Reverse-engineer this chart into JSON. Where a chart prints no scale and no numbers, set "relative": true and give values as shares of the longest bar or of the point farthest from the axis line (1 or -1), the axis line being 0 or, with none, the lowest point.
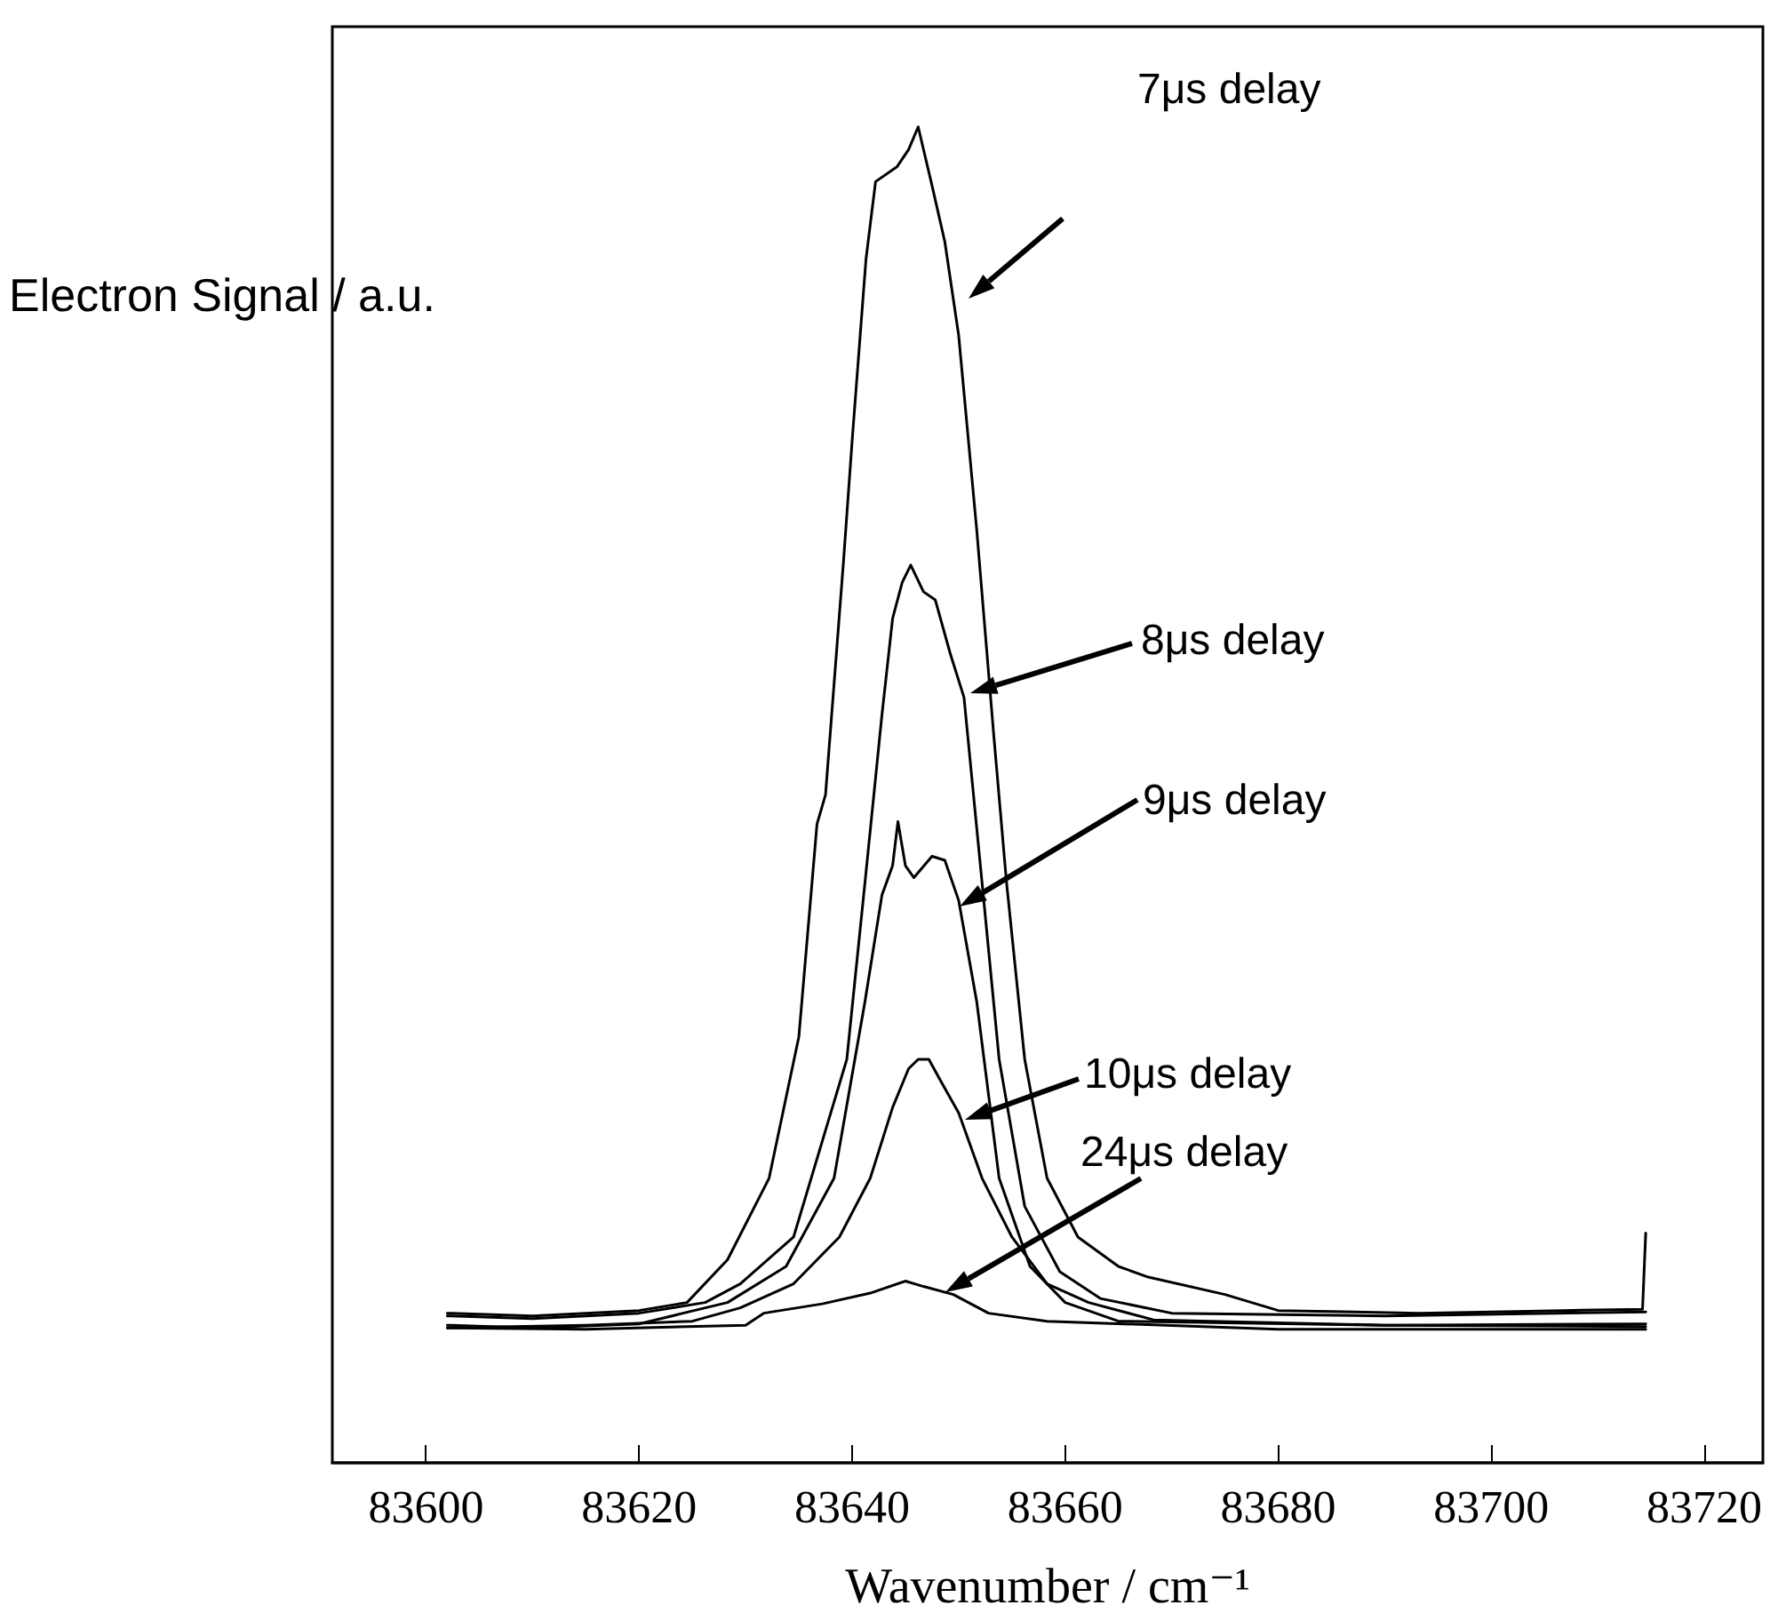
{
  "chart_data": {
    "type": "line",
    "relative": true,
    "xlabel": "Wavenumber / cm⁻¹",
    "ylabel": "Electron Signal / a.u.",
    "xlim": [
      83591.2,
      83725.5
    ],
    "xticks": [
      83600,
      83620,
      83640,
      83660,
      83680,
      83700,
      83720
    ],
    "grid": false,
    "marker": "none",
    "line_style": "solid",
    "series": [
      {
        "color": "#000000",
        "x": [
          83602,
          83610,
          83620,
          83624.5,
          83628.3,
          83632.2,
          83635,
          83636.7,
          83637.5,
          83639.2,
          83640,
          83641.3,
          83642.2,
          83644.2,
          83645.3,
          83646.2,
          83647.5,
          83648.7,
          83650,
          83651.7,
          83653.3,
          83654.5,
          83656.2,
          83658.3,
          83661.2,
          83665,
          83667.8,
          83675,
          83680,
          83693.3,
          83706.7,
          83714.2,
          83714.5
        ],
        "values": [
          0.112,
          0.11,
          0.114,
          0.12,
          0.152,
          0.213,
          0.319,
          0.478,
          0.5,
          0.676,
          0.765,
          0.901,
          0.959,
          0.97,
          0.983,
          1.0,
          0.956,
          0.914,
          0.844,
          0.698,
          0.544,
          0.434,
          0.302,
          0.213,
          0.169,
          0.147,
          0.139,
          0.126,
          0.114,
          0.112,
          0.114,
          0.115,
          0.172
        ]
      },
      {
        "color": "#000000",
        "x": [
          83602,
          83610,
          83620,
          83626.2,
          83629.5,
          83634.5,
          83639.5,
          83641.2,
          83642.8,
          83643.8,
          83644.7,
          83645.5,
          83646.7,
          83647.8,
          83649.2,
          83650.5,
          83652.2,
          83653.8,
          83656.2,
          83659.5,
          83663.3,
          83670,
          83690,
          83714.5
        ],
        "values": [
          0.11,
          0.108,
          0.112,
          0.12,
          0.134,
          0.169,
          0.302,
          0.434,
          0.56,
          0.632,
          0.659,
          0.672,
          0.652,
          0.646,
          0.606,
          0.573,
          0.434,
          0.302,
          0.192,
          0.143,
          0.123,
          0.112,
          0.11,
          0.113
        ]
      },
      {
        "color": "#000000",
        "x": [
          83602,
          83610,
          83620,
          83628.3,
          83633.8,
          83638.3,
          83641.2,
          83642.8,
          83643.8,
          83644.3,
          83645,
          83645.8,
          83647.5,
          83648.7,
          83650,
          83651.7,
          83653.8,
          83656.7,
          83660,
          83665,
          83690,
          83714.5
        ],
        "values": [
          0.103,
          0.101,
          0.104,
          0.12,
          0.147,
          0.213,
          0.345,
          0.425,
          0.447,
          0.48,
          0.447,
          0.438,
          0.454,
          0.451,
          0.421,
          0.345,
          0.213,
          0.147,
          0.12,
          0.106,
          0.103,
          0.104
        ]
      },
      {
        "color": "#000000",
        "x": [
          83602,
          83615,
          83625,
          83629.5,
          83634.5,
          83638.8,
          83641.7,
          83643.8,
          83645.3,
          83646.2,
          83647.2,
          83648.3,
          83650,
          83652.2,
          83655,
          83658.3,
          83662.2,
          83668.3,
          83690,
          83714.5
        ],
        "values": [
          0.101,
          0.103,
          0.106,
          0.116,
          0.134,
          0.169,
          0.213,
          0.266,
          0.295,
          0.302,
          0.302,
          0.286,
          0.262,
          0.213,
          0.169,
          0.134,
          0.12,
          0.107,
          0.103,
          0.102
        ]
      },
      {
        "color": "#000000",
        "x": [
          83602,
          83615,
          83630,
          83631.7,
          83637.2,
          83641.7,
          83645,
          83646.7,
          83649.5,
          83652.8,
          83658.3,
          83680,
          83714.5
        ],
        "values": [
          0.101,
          0.1,
          0.103,
          0.112,
          0.119,
          0.127,
          0.136,
          0.132,
          0.126,
          0.112,
          0.106,
          0.1,
          0.1
        ]
      }
    ],
    "annotations": [
      "7μs delay",
      "8μs delay",
      "9μs delay",
      "10μs delay",
      "24μs delay"
    ]
  }
}
